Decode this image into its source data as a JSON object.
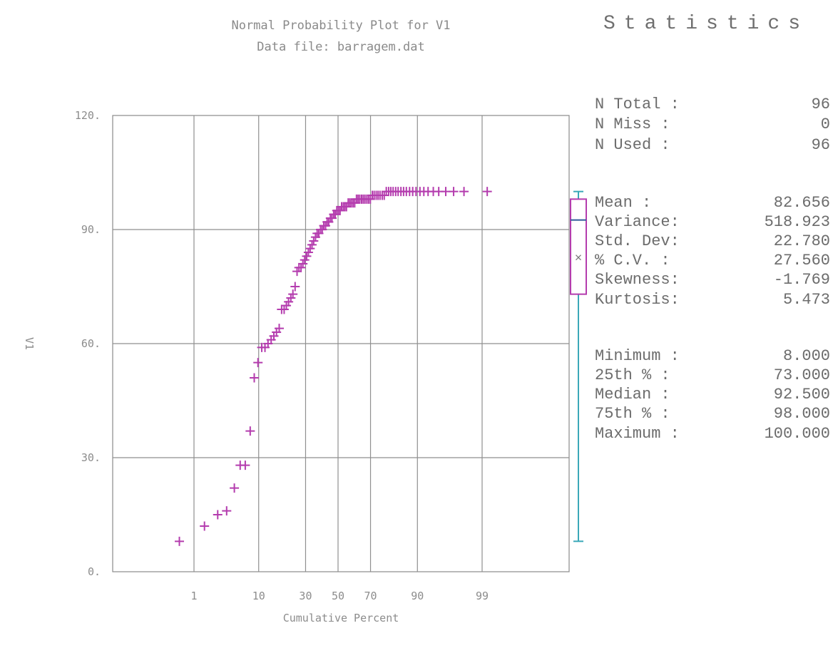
{
  "chart_data": {
    "type": "scatter",
    "title": "Normal Probability Plot for V1",
    "subtitle": "Data file: barragem.dat",
    "xlabel": "Cumulative Percent",
    "ylabel": "V1",
    "x_scale": "normal-probability",
    "ylim": [
      0,
      120
    ],
    "yticks": [
      "0.",
      "30.",
      "60.",
      "90.",
      "120."
    ],
    "xticks": [
      "1",
      "10",
      "30",
      "50",
      "70",
      "90",
      "99"
    ],
    "grid": true,
    "marker": "+",
    "marker_color": "#b43cae",
    "points": [
      [
        0.52,
        8
      ],
      [
        1.55,
        12
      ],
      [
        2.6,
        15
      ],
      [
        3.6,
        16
      ],
      [
        4.7,
        22
      ],
      [
        5.7,
        28
      ],
      [
        6.7,
        28
      ],
      [
        7.8,
        37
      ],
      [
        8.8,
        51
      ],
      [
        9.8,
        55
      ],
      [
        10.9,
        59
      ],
      [
        11.9,
        59
      ],
      [
        12.9,
        60
      ],
      [
        14.0,
        61
      ],
      [
        15.0,
        62
      ],
      [
        16.0,
        63
      ],
      [
        17.1,
        64
      ],
      [
        18.1,
        69
      ],
      [
        19.2,
        69
      ],
      [
        20.2,
        70
      ],
      [
        21.2,
        71
      ],
      [
        22.3,
        72
      ],
      [
        23.3,
        73
      ],
      [
        24.4,
        75
      ],
      [
        25.4,
        79
      ],
      [
        26.4,
        80
      ],
      [
        27.5,
        80
      ],
      [
        28.5,
        81
      ],
      [
        29.5,
        82
      ],
      [
        30.6,
        83
      ],
      [
        31.6,
        84
      ],
      [
        32.6,
        85
      ],
      [
        33.7,
        86
      ],
      [
        34.7,
        87
      ],
      [
        35.8,
        88
      ],
      [
        36.8,
        89
      ],
      [
        37.8,
        89
      ],
      [
        38.9,
        90
      ],
      [
        39.9,
        90
      ],
      [
        40.9,
        91
      ],
      [
        42.0,
        91
      ],
      [
        43.0,
        92
      ],
      [
        44.0,
        92
      ],
      [
        45.1,
        93
      ],
      [
        46.1,
        93
      ],
      [
        47.2,
        94
      ],
      [
        48.2,
        94
      ],
      [
        49.2,
        95
      ],
      [
        50.3,
        95
      ],
      [
        51.3,
        95
      ],
      [
        52.3,
        96
      ],
      [
        53.4,
        96
      ],
      [
        54.4,
        96
      ],
      [
        55.4,
        96
      ],
      [
        56.5,
        97
      ],
      [
        57.5,
        97
      ],
      [
        58.5,
        97
      ],
      [
        59.6,
        97
      ],
      [
        60.6,
        97
      ],
      [
        61.7,
        98
      ],
      [
        62.7,
        98
      ],
      [
        63.7,
        98
      ],
      [
        64.8,
        98
      ],
      [
        65.8,
        98
      ],
      [
        66.8,
        98
      ],
      [
        67.9,
        98
      ],
      [
        68.9,
        98
      ],
      [
        69.9,
        98
      ],
      [
        71.0,
        99
      ],
      [
        72.0,
        99
      ],
      [
        73.1,
        99
      ],
      [
        74.1,
        99
      ],
      [
        75.1,
        99
      ],
      [
        76.2,
        99
      ],
      [
        77.2,
        99
      ],
      [
        78.2,
        100
      ],
      [
        79.3,
        100
      ],
      [
        80.3,
        100
      ],
      [
        81.3,
        100
      ],
      [
        82.4,
        100
      ],
      [
        83.4,
        100
      ],
      [
        84.5,
        100
      ],
      [
        85.5,
        100
      ],
      [
        86.5,
        100
      ],
      [
        87.6,
        100
      ],
      [
        88.6,
        100
      ],
      [
        89.6,
        100
      ],
      [
        90.7,
        100
      ],
      [
        91.7,
        100
      ],
      [
        92.7,
        100
      ],
      [
        93.8,
        100
      ],
      [
        94.8,
        100
      ],
      [
        95.9,
        100
      ],
      [
        96.9,
        100
      ],
      [
        97.9,
        100
      ],
      [
        99.2,
        100
      ]
    ],
    "boxplot": {
      "min": 8.0,
      "q1": 73.0,
      "median": 92.5,
      "q3": 98.0,
      "max": 100.0,
      "mean": 82.656,
      "box_color": "#b43cae",
      "whisker_color": "#3aa8b8",
      "median_color": "#2f5b9a"
    }
  },
  "stats": {
    "heading": "Statistics",
    "rows": [
      {
        "label": "N Total :",
        "value": "96"
      },
      {
        "label": "N Miss  :",
        "value": "0"
      },
      {
        "label": "N Used  :",
        "value": "96"
      },
      {
        "label": "Mean     :",
        "value": "82.656"
      },
      {
        "label": "Variance:",
        "value": "518.923"
      },
      {
        "label": "Std. Dev:",
        "value": "22.780"
      },
      {
        "label": "% C.V.  :",
        "value": "27.560"
      },
      {
        "label": "Skewness:",
        "value": "-1.769"
      },
      {
        "label": "Kurtosis:",
        "value": "5.473"
      },
      {
        "label": "Minimum :",
        "value": "8.000"
      },
      {
        "label": "25th %  :",
        "value": "73.000"
      },
      {
        "label": "Median  :",
        "value": "92.500"
      },
      {
        "label": "75th %  :",
        "value": "98.000"
      },
      {
        "label": "Maximum :",
        "value": "100.000"
      }
    ]
  }
}
